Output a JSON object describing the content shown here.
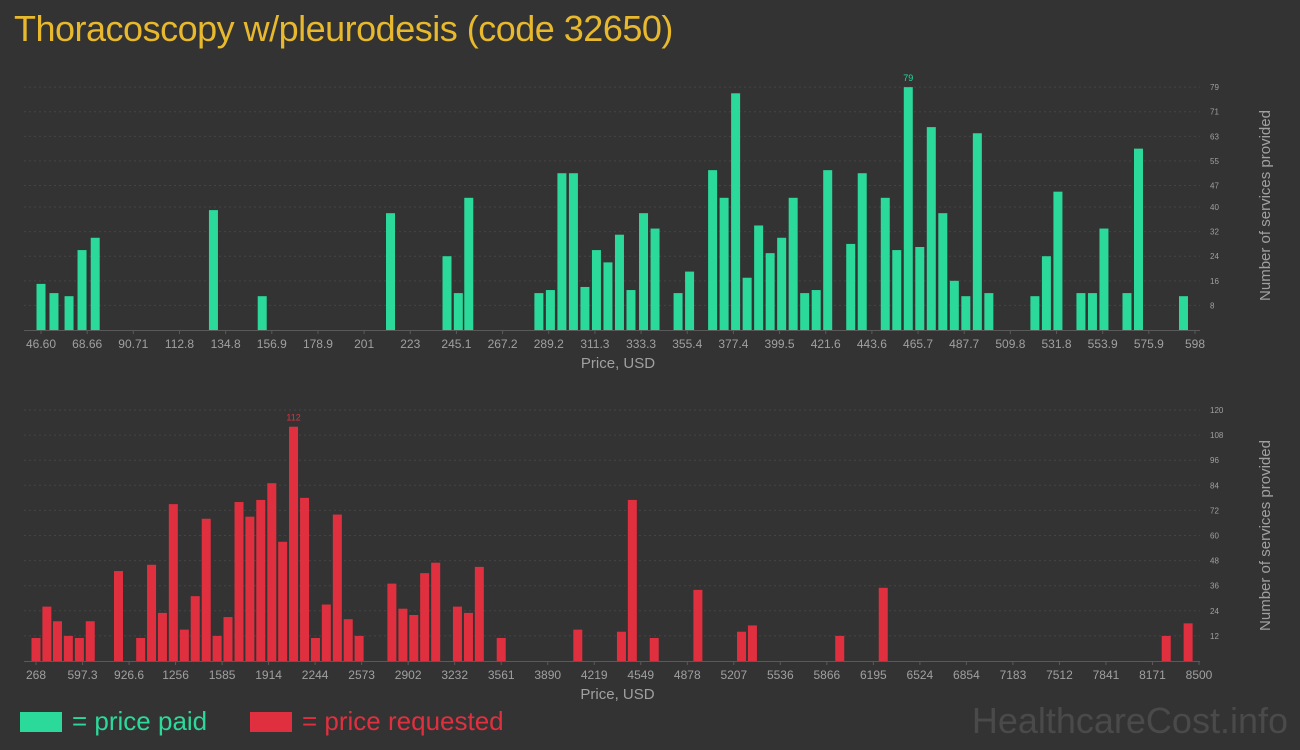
{
  "title": "Thoracoscopy w/pleurodesis (code 32650)",
  "legend": {
    "paid_label": "= price paid",
    "requested_label": "= price requested",
    "paid_color": "#2bd99b",
    "requested_color": "#e0303f"
  },
  "watermark": "HealthcareCost.info",
  "chart_data": [
    {
      "type": "bar",
      "name": "price paid",
      "color": "#2bd99b",
      "xlabel": "Price, USD",
      "ylabel": "Number of services provided",
      "ylim": [
        0,
        81
      ],
      "yticks": [
        8,
        16,
        24,
        32,
        40,
        47,
        55,
        63,
        71,
        79
      ],
      "xticks": [
        "46.60",
        "68.66",
        "90.71",
        "112.8",
        "134.8",
        "156.9",
        "178.9",
        "201",
        "223",
        "245.1",
        "267.2",
        "289.2",
        "311.3",
        "333.3",
        "355.4",
        "377.4",
        "399.5",
        "421.6",
        "443.6",
        "465.7",
        "487.7",
        "509.8",
        "531.8",
        "553.9",
        "575.9",
        "598"
      ],
      "xrange": [
        46.6,
        598
      ],
      "max_label": "79",
      "points": [
        {
          "x": 46.6,
          "y": 15
        },
        {
          "x": 52.8,
          "y": 12
        },
        {
          "x": 60.0,
          "y": 11
        },
        {
          "x": 66.2,
          "y": 26
        },
        {
          "x": 72.5,
          "y": 30
        },
        {
          "x": 129.0,
          "y": 39
        },
        {
          "x": 152.3,
          "y": 11
        },
        {
          "x": 213.6,
          "y": 38
        },
        {
          "x": 240.6,
          "y": 24
        },
        {
          "x": 246.0,
          "y": 12
        },
        {
          "x": 251.0,
          "y": 43
        },
        {
          "x": 284.5,
          "y": 12
        },
        {
          "x": 290.0,
          "y": 13
        },
        {
          "x": 295.5,
          "y": 51
        },
        {
          "x": 301.0,
          "y": 51
        },
        {
          "x": 306.5,
          "y": 14
        },
        {
          "x": 312.0,
          "y": 26
        },
        {
          "x": 317.5,
          "y": 22
        },
        {
          "x": 323.0,
          "y": 31
        },
        {
          "x": 328.5,
          "y": 13
        },
        {
          "x": 334.5,
          "y": 38
        },
        {
          "x": 340.0,
          "y": 33
        },
        {
          "x": 351.0,
          "y": 12
        },
        {
          "x": 356.5,
          "y": 19
        },
        {
          "x": 367.5,
          "y": 52
        },
        {
          "x": 373.0,
          "y": 43
        },
        {
          "x": 378.5,
          "y": 77
        },
        {
          "x": 384.0,
          "y": 17
        },
        {
          "x": 389.5,
          "y": 34
        },
        {
          "x": 395.0,
          "y": 25
        },
        {
          "x": 400.5,
          "y": 30
        },
        {
          "x": 406.0,
          "y": 43
        },
        {
          "x": 411.5,
          "y": 12
        },
        {
          "x": 417.0,
          "y": 13
        },
        {
          "x": 422.5,
          "y": 52
        },
        {
          "x": 433.5,
          "y": 28
        },
        {
          "x": 439.0,
          "y": 51
        },
        {
          "x": 450.0,
          "y": 43
        },
        {
          "x": 455.5,
          "y": 26
        },
        {
          "x": 461.0,
          "y": 79
        },
        {
          "x": 466.5,
          "y": 27
        },
        {
          "x": 472.0,
          "y": 66
        },
        {
          "x": 477.5,
          "y": 38
        },
        {
          "x": 483.0,
          "y": 16
        },
        {
          "x": 488.5,
          "y": 11
        },
        {
          "x": 494.0,
          "y": 64
        },
        {
          "x": 499.5,
          "y": 12
        },
        {
          "x": 521.5,
          "y": 11
        },
        {
          "x": 527.0,
          "y": 24
        },
        {
          "x": 532.5,
          "y": 45
        },
        {
          "x": 543.5,
          "y": 12
        },
        {
          "x": 549.0,
          "y": 12
        },
        {
          "x": 554.5,
          "y": 33
        },
        {
          "x": 565.5,
          "y": 12
        },
        {
          "x": 571.0,
          "y": 59
        },
        {
          "x": 592.5,
          "y": 11
        }
      ]
    },
    {
      "type": "bar",
      "name": "price requested",
      "color": "#e0303f",
      "xlabel": "Price, USD",
      "ylabel": "Number of services provided",
      "ylim": [
        0,
        120
      ],
      "yticks": [
        12,
        24,
        36,
        48,
        60,
        72,
        84,
        96,
        108,
        120
      ],
      "xticks": [
        "268",
        "597.3",
        "926.6",
        "1256",
        "1585",
        "1914",
        "2244",
        "2573",
        "2902",
        "3232",
        "3561",
        "3890",
        "4219",
        "4549",
        "4878",
        "5207",
        "5536",
        "5866",
        "6195",
        "6524",
        "6854",
        "7183",
        "7512",
        "7841",
        "8171",
        "8500"
      ],
      "xrange": [
        268,
        8500
      ],
      "max_label": "112",
      "points": [
        {
          "x": 268,
          "y": 11
        },
        {
          "x": 345,
          "y": 26
        },
        {
          "x": 420,
          "y": 19
        },
        {
          "x": 497,
          "y": 12
        },
        {
          "x": 575,
          "y": 11
        },
        {
          "x": 652,
          "y": 19
        },
        {
          "x": 852,
          "y": 43
        },
        {
          "x": 1009,
          "y": 11
        },
        {
          "x": 1086,
          "y": 46
        },
        {
          "x": 1163,
          "y": 23
        },
        {
          "x": 1240,
          "y": 75
        },
        {
          "x": 1318,
          "y": 15
        },
        {
          "x": 1395,
          "y": 31
        },
        {
          "x": 1473,
          "y": 68
        },
        {
          "x": 1550,
          "y": 12
        },
        {
          "x": 1627,
          "y": 21
        },
        {
          "x": 1705,
          "y": 76
        },
        {
          "x": 1782,
          "y": 69
        },
        {
          "x": 1859,
          "y": 77
        },
        {
          "x": 1937,
          "y": 85
        },
        {
          "x": 2014,
          "y": 57
        },
        {
          "x": 2091,
          "y": 112
        },
        {
          "x": 2169,
          "y": 78
        },
        {
          "x": 2246,
          "y": 11
        },
        {
          "x": 2323,
          "y": 27
        },
        {
          "x": 2401,
          "y": 70
        },
        {
          "x": 2478,
          "y": 20
        },
        {
          "x": 2555,
          "y": 12
        },
        {
          "x": 2787,
          "y": 37
        },
        {
          "x": 2865,
          "y": 25
        },
        {
          "x": 2942,
          "y": 22
        },
        {
          "x": 3019,
          "y": 42
        },
        {
          "x": 3097,
          "y": 47
        },
        {
          "x": 3251,
          "y": 26
        },
        {
          "x": 3329,
          "y": 23
        },
        {
          "x": 3406,
          "y": 45
        },
        {
          "x": 3561,
          "y": 11
        },
        {
          "x": 4103,
          "y": 15
        },
        {
          "x": 4412,
          "y": 14
        },
        {
          "x": 4489,
          "y": 77
        },
        {
          "x": 4644,
          "y": 11
        },
        {
          "x": 4953,
          "y": 34
        },
        {
          "x": 5262,
          "y": 14
        },
        {
          "x": 5339,
          "y": 17
        },
        {
          "x": 5957,
          "y": 12
        },
        {
          "x": 6265,
          "y": 35
        },
        {
          "x": 8268,
          "y": 12
        },
        {
          "x": 8423,
          "y": 18
        }
      ]
    }
  ]
}
